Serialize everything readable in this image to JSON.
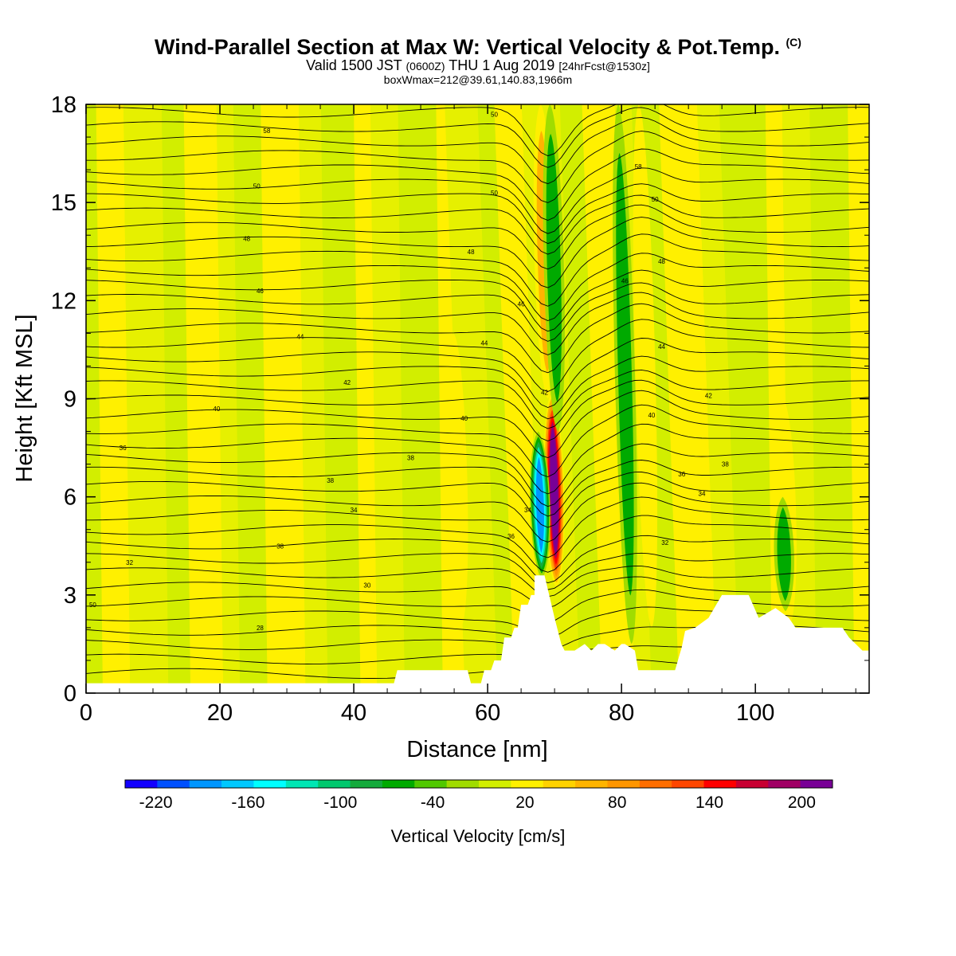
{
  "title": {
    "main": "Wind-Parallel Section at Max W: Vertical Velocity & Pot.Temp.",
    "copyright": "(C)",
    "valid_prefix": "Valid 1500 JST",
    "valid_utc": "(0600Z)",
    "valid_date": "THU 1 Aug 2019",
    "forecast": "[24hrFcst@1530z]",
    "boxwmax": "boxWmax=212@39.61,140.83,1966m"
  },
  "colors": {
    "background": "#d2ee00",
    "light": "#e6f000",
    "yellow": "#fff000",
    "terrain": "#ffffff",
    "contour": "#000000",
    "colorbar": [
      "#1200ff",
      "#0050ff",
      "#0096ff",
      "#00c8ff",
      "#00ffff",
      "#00e6b4",
      "#00c86e",
      "#14aa3c",
      "#00aa00",
      "#50c800",
      "#a0dc00",
      "#d2ee00",
      "#fff000",
      "#ffd200",
      "#ffb400",
      "#ff9600",
      "#ff6e00",
      "#ff4600",
      "#ff0000",
      "#c80032",
      "#a00064",
      "#780096"
    ]
  },
  "chart_data": {
    "type": "heatmap",
    "xlabel": "Distance [nm]",
    "ylabel": "Height [Kft MSL]",
    "xlim": [
      0,
      117
    ],
    "ylim": [
      0,
      18
    ],
    "x_ticks": [
      "0",
      "20",
      "40",
      "60",
      "80",
      "100"
    ],
    "x_tick_values": [
      0,
      20,
      40,
      60,
      80,
      100
    ],
    "y_ticks": [
      "0",
      "3",
      "6",
      "9",
      "12",
      "15",
      "18"
    ],
    "y_tick_values": [
      0,
      3,
      6,
      9,
      12,
      15,
      18
    ],
    "colorbar": {
      "label": "Vertical Velocity [cm/s]",
      "min": -240,
      "max": 220,
      "tick_labels": [
        "-220",
        "-160",
        "-100",
        "-40",
        "20",
        "80",
        "140",
        "200"
      ],
      "tick_values": [
        -220,
        -160,
        -100,
        -40,
        20,
        80,
        140,
        200
      ]
    },
    "terrain": [
      [
        0,
        0.3
      ],
      [
        46,
        0.3
      ],
      [
        46.5,
        0.7
      ],
      [
        57,
        0.7
      ],
      [
        57.5,
        0.3
      ],
      [
        59,
        0.3
      ],
      [
        59.5,
        0.7
      ],
      [
        60.5,
        0.7
      ],
      [
        61,
        1
      ],
      [
        62,
        1
      ],
      [
        62.5,
        1.7
      ],
      [
        63.5,
        1.7
      ],
      [
        64,
        2
      ],
      [
        64.5,
        2
      ],
      [
        65,
        2.7
      ],
      [
        66,
        2.7
      ],
      [
        66.5,
        3
      ],
      [
        67,
        3
      ],
      [
        67,
        3.6
      ],
      [
        68.5,
        3.6
      ],
      [
        70,
        2.3
      ],
      [
        71,
        1.5
      ],
      [
        71.5,
        1.3
      ],
      [
        73,
        1.3
      ],
      [
        74.5,
        1.5
      ],
      [
        75.5,
        1.3
      ],
      [
        76.5,
        1.5
      ],
      [
        77.5,
        1.5
      ],
      [
        79,
        1.3
      ],
      [
        80,
        1.5
      ],
      [
        80.5,
        1.5
      ],
      [
        82,
        1.3
      ],
      [
        82.5,
        0.7
      ],
      [
        88,
        0.7
      ],
      [
        89,
        1.4
      ],
      [
        89.5,
        1.9
      ],
      [
        91,
        2
      ],
      [
        93,
        2.3
      ],
      [
        95,
        3
      ],
      [
        99,
        3
      ],
      [
        100.5,
        2.3
      ],
      [
        103,
        2.6
      ],
      [
        105,
        2.3
      ],
      [
        106,
        2
      ],
      [
        113,
        2
      ],
      [
        114,
        1.7
      ],
      [
        116,
        1.3
      ],
      [
        117,
        1.3
      ]
    ],
    "updraft_bands": [
      {
        "x": 70.3,
        "bottom": 3.2,
        "top": 9.2,
        "peak": 212
      },
      {
        "x": 69,
        "bottom": 9,
        "top": 18,
        "peak": 60
      },
      {
        "x": 56,
        "bottom": 2,
        "top": 11,
        "peak": 40
      },
      {
        "x": 84.5,
        "bottom": 2,
        "top": 18,
        "peak": 30
      },
      {
        "x": 105,
        "bottom": 2,
        "top": 9,
        "peak": 40
      }
    ],
    "downdraft_bands": [
      {
        "x": 68.1,
        "bottom": 3.5,
        "top": 8,
        "peak": -200
      },
      {
        "x": 70.5,
        "bottom": 8,
        "top": 18,
        "peak": -70
      },
      {
        "x": 81.5,
        "bottom": 1.5,
        "top": 18,
        "peak": -70
      },
      {
        "x": 104.5,
        "bottom": 2.5,
        "top": 6,
        "peak": -60
      }
    ],
    "isentropes": [
      {
        "label": "50",
        "x": 1,
        "y": 2.7
      },
      {
        "label": "32",
        "x": 6.5,
        "y": 4
      },
      {
        "label": "36",
        "x": 5.5,
        "y": 7.5
      },
      {
        "label": "28",
        "x": 26,
        "y": 2
      },
      {
        "label": "38",
        "x": 29,
        "y": 4.5
      },
      {
        "label": "34",
        "x": 40,
        "y": 5.6
      },
      {
        "label": "38",
        "x": 36.5,
        "y": 6.5
      },
      {
        "label": "30",
        "x": 42,
        "y": 3.3
      },
      {
        "label": "40",
        "x": 19.5,
        "y": 8.7
      },
      {
        "label": "42",
        "x": 39,
        "y": 9.5
      },
      {
        "label": "44",
        "x": 32,
        "y": 10.9
      },
      {
        "label": "46",
        "x": 26,
        "y": 12.3
      },
      {
        "label": "48",
        "x": 24,
        "y": 13.9
      },
      {
        "label": "50",
        "x": 25.5,
        "y": 15.5
      },
      {
        "label": "58",
        "x": 27,
        "y": 17.2
      },
      {
        "label": "38",
        "x": 48.5,
        "y": 7.2
      },
      {
        "label": "40",
        "x": 56.5,
        "y": 8.4
      },
      {
        "label": "36",
        "x": 63.5,
        "y": 4.8
      },
      {
        "label": "34",
        "x": 66,
        "y": 5.6
      },
      {
        "label": "42",
        "x": 68.5,
        "y": 9.2
      },
      {
        "label": "44",
        "x": 59.5,
        "y": 10.7
      },
      {
        "label": "46",
        "x": 65,
        "y": 11.9
      },
      {
        "label": "48",
        "x": 57.5,
        "y": 13.5
      },
      {
        "label": "50",
        "x": 61,
        "y": 15.3
      },
      {
        "label": "50",
        "x": 61,
        "y": 17.7
      },
      {
        "label": "40",
        "x": 84.5,
        "y": 8.5
      },
      {
        "label": "36",
        "x": 89,
        "y": 6.7
      },
      {
        "label": "34",
        "x": 92,
        "y": 6.1
      },
      {
        "label": "32",
        "x": 86.5,
        "y": 4.6
      },
      {
        "label": "38",
        "x": 95.5,
        "y": 7
      },
      {
        "label": "42",
        "x": 93,
        "y": 9.1
      },
      {
        "label": "44",
        "x": 86,
        "y": 10.6
      },
      {
        "label": "46",
        "x": 80.5,
        "y": 12.6
      },
      {
        "label": "48",
        "x": 86,
        "y": 13.2
      },
      {
        "label": "50",
        "x": 85,
        "y": 15.1
      },
      {
        "label": "58",
        "x": 82.5,
        "y": 16.1
      }
    ]
  }
}
